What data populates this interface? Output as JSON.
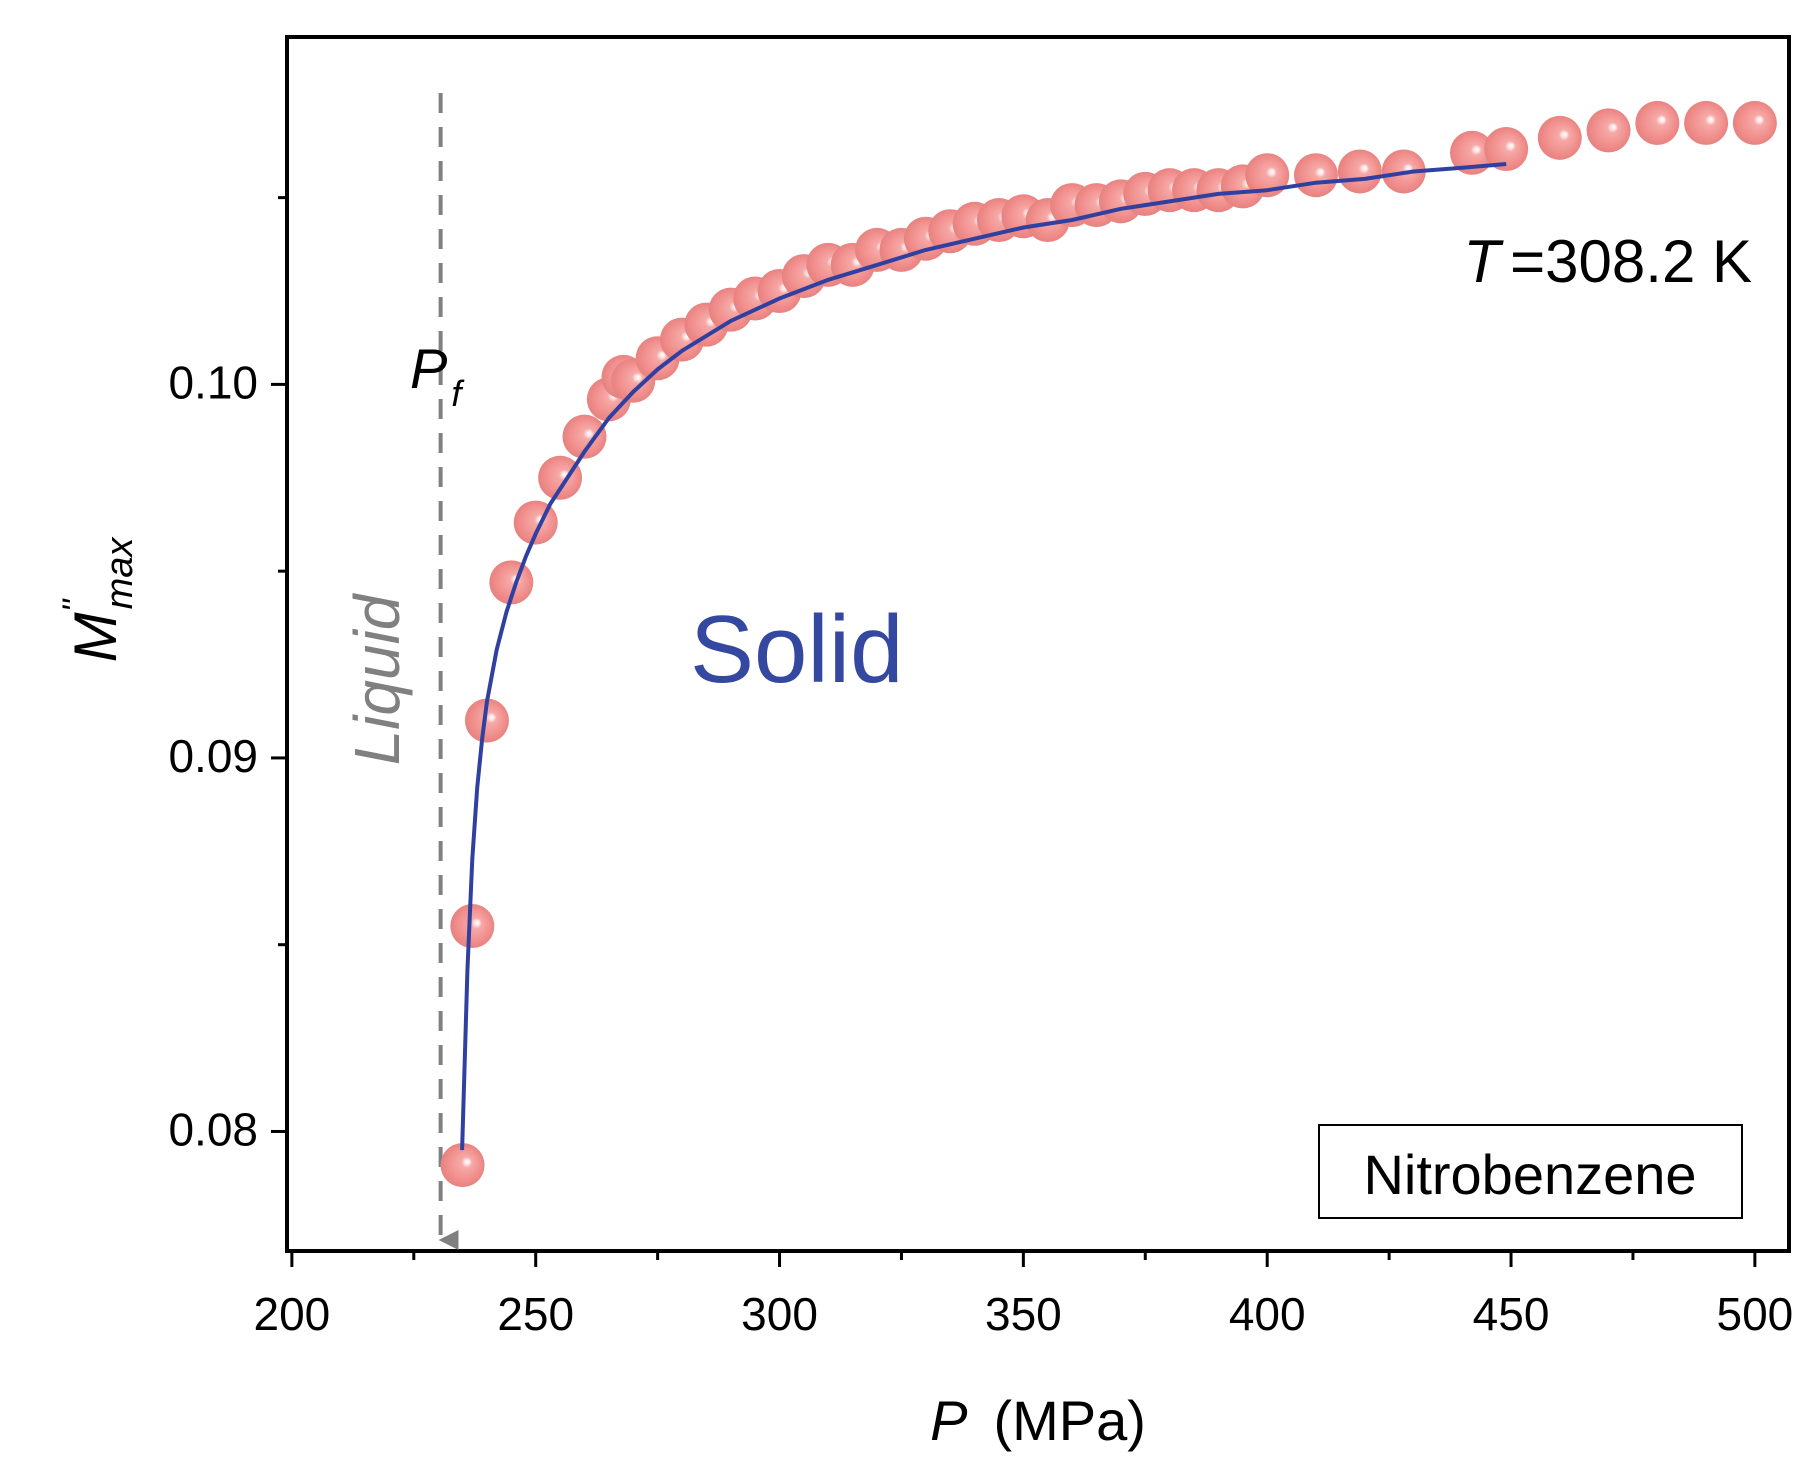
{
  "chart_data": {
    "type": "scatter",
    "title": "",
    "xlabel": {
      "symbol": "P",
      "unit": "(MPa)"
    },
    "ylabel": {
      "main": "M",
      "prime": "''",
      "sub": "max"
    },
    "xlim": [
      199,
      507
    ],
    "ylim": [
      0.0768,
      0.1093
    ],
    "xticks": [
      200,
      250,
      300,
      350,
      400,
      450,
      500
    ],
    "xtick_labels": [
      "200",
      "250",
      "300",
      "350",
      "400",
      "450",
      "500"
    ],
    "yticks": [
      0.08,
      0.09,
      0.1
    ],
    "ytick_labels": [
      "0.08",
      "0.09",
      "0.10"
    ],
    "grid": false,
    "series": [
      {
        "name": "data",
        "kind": "markers",
        "color": "#f08a88",
        "x": [
          235,
          237,
          240,
          245,
          250,
          255,
          260,
          265,
          268,
          270,
          275,
          280,
          285,
          290,
          295,
          300,
          305,
          310,
          315,
          320,
          325,
          330,
          335,
          340,
          345,
          350,
          355,
          360,
          365,
          370,
          375,
          380,
          385,
          390,
          395,
          400,
          410,
          419,
          428,
          442,
          449,
          460,
          470,
          480,
          490,
          500
        ],
        "y": [
          0.0791,
          0.0855,
          0.091,
          0.0947,
          0.0963,
          0.0975,
          0.0986,
          0.0996,
          0.1002,
          0.1001,
          0.1007,
          0.1012,
          0.1016,
          0.102,
          0.1023,
          0.1025,
          0.1029,
          0.1032,
          0.1032,
          0.1036,
          0.1036,
          0.1039,
          0.1041,
          0.1043,
          0.1044,
          0.1045,
          0.1044,
          0.1048,
          0.1048,
          0.1049,
          0.1051,
          0.1052,
          0.1052,
          0.1052,
          0.1053,
          0.1056,
          0.1056,
          0.1057,
          0.1057,
          0.1062,
          0.1063,
          0.1066,
          0.1068,
          0.107,
          0.107,
          0.107
        ]
      },
      {
        "name": "fit",
        "kind": "line",
        "color": "#3040a0",
        "x": [
          234.9,
          236,
          237,
          238,
          239,
          240,
          242,
          244,
          246,
          248,
          250,
          253,
          256,
          260,
          265,
          270,
          275,
          280,
          290,
          300,
          310,
          320,
          330,
          340,
          350,
          360,
          370,
          380,
          390,
          400,
          410,
          420,
          430,
          440,
          449
        ],
        "y": [
          0.0795,
          0.0843,
          0.0873,
          0.0892,
          0.0905,
          0.0915,
          0.0929,
          0.0939,
          0.0947,
          0.0954,
          0.096,
          0.0968,
          0.0974,
          0.0982,
          0.0991,
          0.0998,
          0.1004,
          0.1009,
          0.1017,
          0.1023,
          0.1028,
          0.1032,
          0.1036,
          0.1039,
          0.1042,
          0.1044,
          0.1047,
          0.1049,
          0.1051,
          0.1052,
          0.1054,
          0.1055,
          0.1057,
          0.1058,
          0.1059
        ]
      }
    ],
    "annotations": {
      "pf_line": {
        "x": 230.5,
        "color": "#808080",
        "style": "dashed-arrow-down"
      },
      "pf_label": {
        "main": "P",
        "sub": "f",
        "color": "#000000"
      },
      "liquid_label": {
        "text": "Liquid",
        "color": "#808080"
      },
      "solid_label": {
        "text": "Solid",
        "color": "#3548a0"
      },
      "temperature_label": {
        "symbol": "T",
        "value": "=308.2 K",
        "color": "#000000"
      },
      "sample_label": {
        "text": "Nitrobenzene",
        "color": "#000000"
      }
    }
  }
}
